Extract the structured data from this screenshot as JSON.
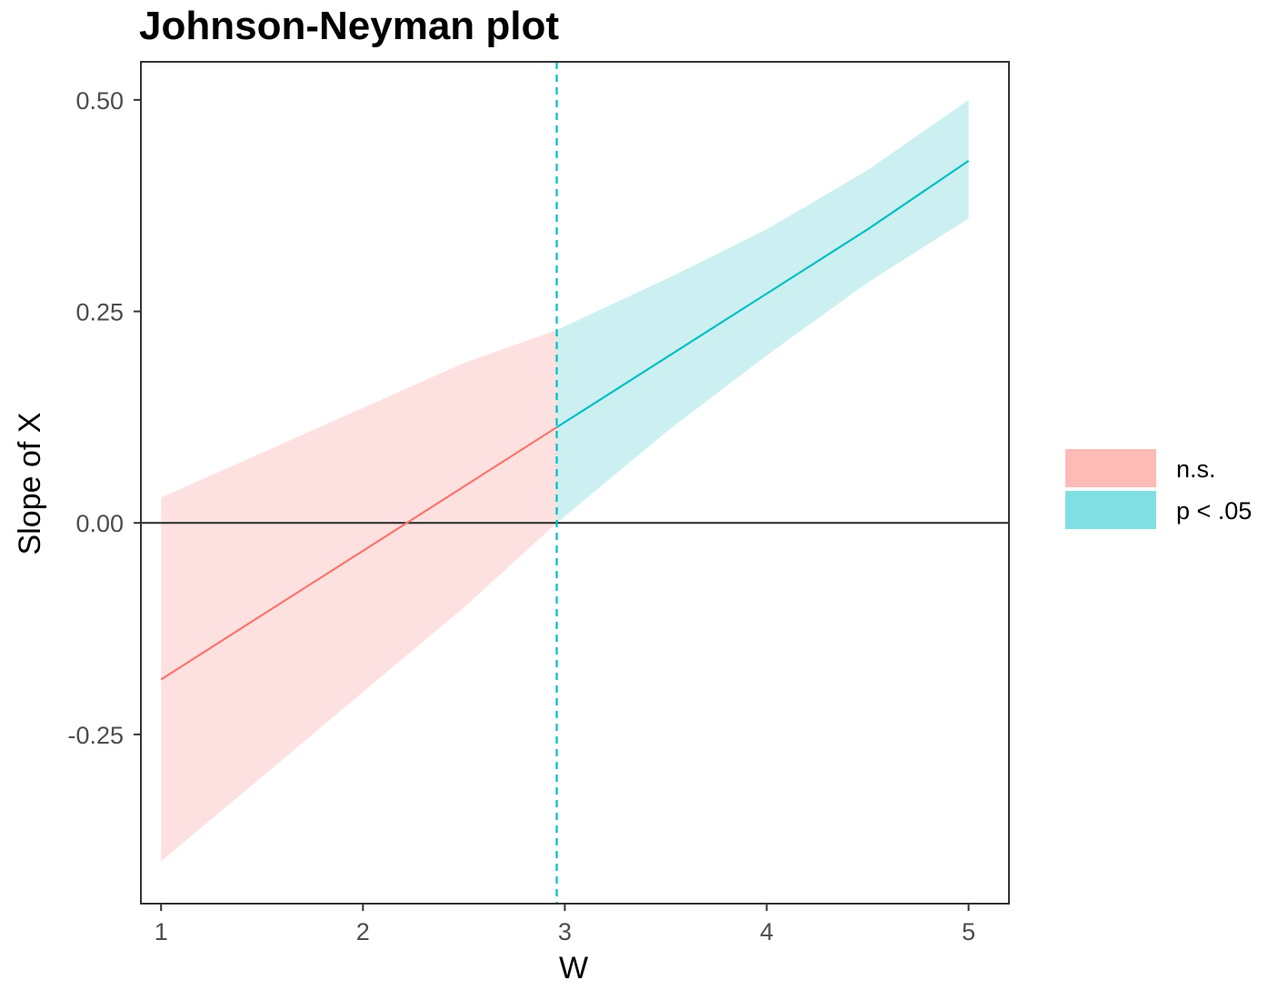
{
  "chart_data": {
    "type": "line",
    "title": "Johnson-Neyman plot",
    "xlabel": "W",
    "ylabel": "Slope of X",
    "xlim": [
      0.9,
      5.2
    ],
    "ylim": [
      -0.45,
      0.545
    ],
    "xticks": [
      1,
      2,
      3,
      4,
      5
    ],
    "xtick_labels": [
      "1",
      "2",
      "3",
      "4",
      "5"
    ],
    "yticks": [
      -0.25,
      0,
      0.25,
      0.5
    ],
    "ytick_labels": [
      "-0.25",
      "0.00",
      "0.25",
      "0.50"
    ],
    "grid": false,
    "legend_position": "right",
    "hline_y": 0,
    "jn_threshold": 2.96,
    "colors": {
      "ns_line": "#F8766D",
      "ns_band": "#FDE1E0",
      "sig_line": "#00BFC4",
      "sig_band": "#CCF0F1",
      "ns_legend": "#FCBBB6",
      "sig_legend": "#80DFE2",
      "threshold": "#00BFC4",
      "zero_line": "#333333"
    },
    "series": [
      {
        "name": "n.s.",
        "x": [
          1,
          1.5,
          2,
          2.5,
          2.96
        ],
        "y": [
          -0.185,
          -0.109,
          -0.033,
          0.043,
          0.113
        ],
        "lower": [
          -0.4,
          -0.3,
          -0.2,
          -0.1,
          0.0
        ],
        "upper": [
          0.03,
          0.083,
          0.136,
          0.189,
          0.228
        ]
      },
      {
        "name": "p < .05",
        "x": [
          2.96,
          3.5,
          4,
          4.5,
          5
        ],
        "y": [
          0.113,
          0.195,
          0.271,
          0.347,
          0.428
        ],
        "lower": [
          0.0,
          0.107,
          0.198,
          0.284,
          0.36
        ],
        "upper": [
          0.228,
          0.288,
          0.347,
          0.417,
          0.5
        ]
      }
    ],
    "legend": [
      {
        "label": "n.s."
      },
      {
        "label": "p < .05"
      }
    ]
  }
}
